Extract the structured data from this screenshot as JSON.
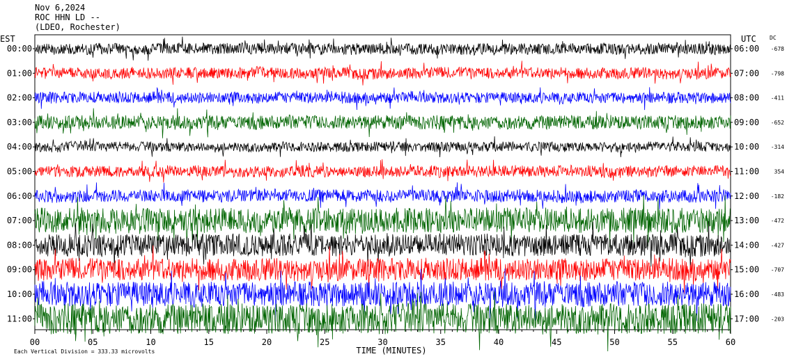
{
  "header": {
    "line1": "Nov 6,2024",
    "line2": "ROC HHN LD --",
    "line3": "(LDEO, Rochester)"
  },
  "chart_data": {
    "type": "line",
    "title": "Nov 6,2024 ROC HHN LD -- (LDEO, Rochester)",
    "xlabel": "TIME (MINUTES)",
    "x_ticks": [
      "00",
      "05",
      "10",
      "15",
      "20",
      "25",
      "30",
      "35",
      "40",
      "45",
      "50",
      "55",
      "60"
    ],
    "xlim": [
      0,
      60
    ],
    "left_axis_title": "EST",
    "right_axis_title": "UTC",
    "dc_title": "DC",
    "scale_note": "Each Vertical Division = 333.33 microvolts",
    "trace_colors": [
      "#000000",
      "#ff0000",
      "#0000ff",
      "#006400"
    ],
    "rows": [
      {
        "est": "00:00",
        "utc": "06:00",
        "dc": "-678",
        "amp": 8
      },
      {
        "est": "01:00",
        "utc": "07:00",
        "dc": "-798",
        "amp": 8
      },
      {
        "est": "02:00",
        "utc": "08:00",
        "dc": "-411",
        "amp": 8
      },
      {
        "est": "03:00",
        "utc": "09:00",
        "dc": "-652",
        "amp": 10
      },
      {
        "est": "04:00",
        "utc": "10:00",
        "dc": "-314",
        "amp": 7
      },
      {
        "est": "05:00",
        "utc": "11:00",
        "dc": "354",
        "amp": 8
      },
      {
        "est": "06:00",
        "utc": "12:00",
        "dc": "-182",
        "amp": 9
      },
      {
        "est": "07:00",
        "utc": "13:00",
        "dc": "-472",
        "amp": 18
      },
      {
        "est": "08:00",
        "utc": "14:00",
        "dc": "-427",
        "amp": 16
      },
      {
        "est": "09:00",
        "utc": "15:00",
        "dc": "-707",
        "amp": 16
      },
      {
        "est": "10:00",
        "utc": "16:00",
        "dc": "-483",
        "amp": 18
      },
      {
        "est": "11:00",
        "utc": "17:00",
        "dc": "-203",
        "amp": 22
      }
    ]
  }
}
